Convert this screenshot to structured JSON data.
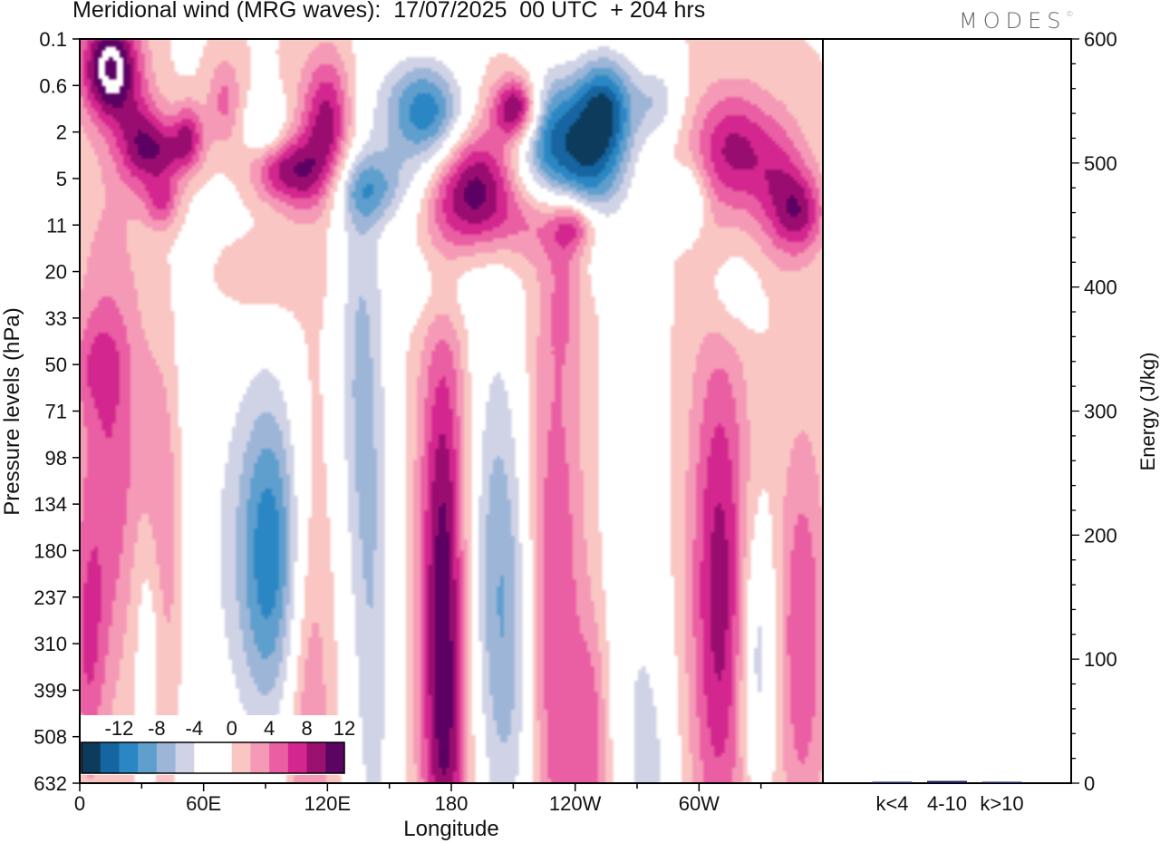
{
  "header": {
    "title": "Meridional wind (MRG waves):  17/07/2025  00 UTC  + 204 hrs",
    "brand": "MODES",
    "brand_mark": "©"
  },
  "chart_data": [
    {
      "type": "heatmap",
      "xlabel": "Longitude",
      "ylabel": "Pressure levels (hPa)",
      "x_ticks": [
        "0",
        "60E",
        "120E",
        "180",
        "120W",
        "60W"
      ],
      "x_tick_degrees": [
        0,
        60,
        120,
        180,
        240,
        300
      ],
      "xlim": [
        0,
        360
      ],
      "y_ticks": [
        "0.1",
        "0.6",
        "2",
        "5",
        "11",
        "20",
        "33",
        "50",
        "71",
        "98",
        "134",
        "180",
        "237",
        "310",
        "399",
        "508",
        "632"
      ],
      "colorbar": {
        "labels": [
          "-12",
          "-8",
          "-4",
          "0",
          "4",
          "8",
          "12"
        ],
        "levels": [
          -14,
          -12,
          -10,
          -8,
          -6,
          -4,
          -2,
          0,
          2,
          4,
          6,
          8,
          10,
          12,
          14
        ],
        "colors": [
          "#0d3b5c",
          "#1565a0",
          "#2a87c4",
          "#5e9fcd",
          "#9db6d8",
          "#d0d3e6",
          "#ffffff",
          "#ffffff",
          "#f9c6c3",
          "#f59ab6",
          "#ea5ea3",
          "#d4268f",
          "#9a1170",
          "#5b0563"
        ]
      },
      "blobs": [
        {
          "lon": 15,
          "lev": 0.3,
          "dlon": 10,
          "dlev": 0.8,
          "val": 14
        },
        {
          "lon": 30,
          "lev": 2.5,
          "dlon": 9,
          "dlev": 0.7,
          "val": 8
        },
        {
          "lon": 45,
          "lev": 3.0,
          "dlon": 10,
          "dlev": 0.5,
          "val": 6
        },
        {
          "lon": 40,
          "lev": 7.5,
          "dlon": 6,
          "dlev": 0.4,
          "val": 6
        },
        {
          "lon": 53,
          "lev": 2.0,
          "dlon": 5,
          "dlev": 0.5,
          "val": 6
        },
        {
          "lon": 70,
          "lev": 0.9,
          "dlon": 6,
          "dlev": 0.7,
          "val": 5
        },
        {
          "lon": 90,
          "lev": 2.0,
          "dlon": 7,
          "dlev": 0.5,
          "val": -5
        },
        {
          "lon": 95,
          "lev": 4.0,
          "dlon": 10,
          "dlev": 0.5,
          "val": 7
        },
        {
          "lon": 120,
          "lev": 1.5,
          "dlon": 9,
          "dlev": 1.0,
          "val": 9
        },
        {
          "lon": 110,
          "lev": 5.0,
          "dlon": 10,
          "dlev": 0.6,
          "val": 6
        },
        {
          "lon": 140,
          "lev": 6.0,
          "dlon": 14,
          "dlev": 0.55,
          "val": -7
        },
        {
          "lon": 160,
          "lev": 1.2,
          "dlon": 12,
          "dlev": 0.9,
          "val": -8
        },
        {
          "lon": 175,
          "lev": 1.3,
          "dlon": 10,
          "dlev": 0.8,
          "val": -7
        },
        {
          "lon": 192,
          "lev": 6.0,
          "dlon": 14,
          "dlev": 0.9,
          "val": 11
        },
        {
          "lon": 212,
          "lev": 1.1,
          "dlon": 8,
          "dlev": 0.5,
          "val": 13
        },
        {
          "lon": 225,
          "lev": 2.0,
          "dlon": 11,
          "dlev": 1.0,
          "val": -9
        },
        {
          "lon": 245,
          "lev": 4.0,
          "dlon": 14,
          "dlev": 1.2,
          "val": -12
        },
        {
          "lon": 255,
          "lev": 1.0,
          "dlon": 10,
          "dlev": 0.8,
          "val": -10
        },
        {
          "lon": 280,
          "lev": 0.9,
          "dlon": 8,
          "dlev": 0.6,
          "val": -5
        },
        {
          "lon": 317,
          "lev": 2.8,
          "dlon": 14,
          "dlev": 0.9,
          "val": 8
        },
        {
          "lon": 340,
          "lev": 6.5,
          "dlon": 10,
          "dlev": 1.0,
          "val": 6
        },
        {
          "lon": 350,
          "lev": 9.0,
          "dlon": 8,
          "dlev": 0.6,
          "val": 6
        },
        {
          "lon": 295,
          "lev": 7.0,
          "dlon": 6,
          "dlev": 0.5,
          "val": -5
        },
        {
          "lon": 230,
          "lev": 10.5,
          "dlon": 20,
          "dlev": 0.6,
          "val": 5
        },
        {
          "lon": 240,
          "lev": 11.0,
          "dlon": 7,
          "dlev": 0.4,
          "val": 6
        },
        {
          "lon": 85,
          "lev": 21.0,
          "dlon": 18,
          "dlev": 0.6,
          "val": 3
        },
        {
          "lon": 175,
          "lev": 23.0,
          "dlon": 15,
          "dlev": 0.7,
          "val": -3
        },
        {
          "lon": 235,
          "lev": 22.0,
          "dlon": 7,
          "dlev": 1.2,
          "val": 3
        },
        {
          "lon": 315,
          "lev": 25.0,
          "dlon": 10,
          "dlev": 0.8,
          "val": -3
        },
        {
          "lon": 135,
          "lev": 45.0,
          "dlon": 8,
          "dlev": 3.5,
          "val": -5
        },
        {
          "lon": 8,
          "lev": 50.0,
          "dlon": 9,
          "dlev": 0.7,
          "val": 3
        },
        {
          "lon": 15,
          "lev": 92.0,
          "dlon": 12,
          "dlev": 3.5,
          "val": 6
        },
        {
          "lon": 40,
          "lev": 190.0,
          "dlon": 7,
          "dlev": 3.0,
          "val": 7
        },
        {
          "lon": 60,
          "lev": 160.0,
          "dlon": 20,
          "dlev": 5.0,
          "val": -3
        },
        {
          "lon": 93,
          "lev": 185.0,
          "dlon": 12,
          "dlev": 2.6,
          "val": -11
        },
        {
          "lon": 35,
          "lev": 265.0,
          "dlon": 6,
          "dlev": 2.0,
          "val": -5
        },
        {
          "lon": 4,
          "lev": 320.0,
          "dlon": 6,
          "dlev": 1.8,
          "val": 5
        },
        {
          "lon": 110,
          "lev": 380.0,
          "dlon": 8,
          "dlev": 4.0,
          "val": 5
        },
        {
          "lon": 142,
          "lev": 310.0,
          "dlon": 8,
          "dlev": 5.0,
          "val": -5
        },
        {
          "lon": 176,
          "lev": 210.0,
          "dlon": 8,
          "dlev": 4.0,
          "val": 11
        },
        {
          "lon": 202,
          "lev": 205.0,
          "dlon": 10,
          "dlev": 4.0,
          "val": -7
        },
        {
          "lon": 230,
          "lev": 260.0,
          "dlon": 10,
          "dlev": 5.0,
          "val": 6
        },
        {
          "lon": 212,
          "lev": 380.0,
          "dlon": 8,
          "dlev": 3.0,
          "val": -3
        },
        {
          "lon": 268,
          "lev": 300.0,
          "dlon": 10,
          "dlev": 5.0,
          "val": -3
        },
        {
          "lon": 310,
          "lev": 230.0,
          "dlon": 10,
          "dlev": 4.0,
          "val": 9
        },
        {
          "lon": 328,
          "lev": 330.0,
          "dlon": 6,
          "dlev": 2.0,
          "val": -6
        },
        {
          "lon": 350,
          "lev": 300.0,
          "dlon": 8,
          "dlev": 3.0,
          "val": 6
        },
        {
          "lon": 248,
          "lev": 540.0,
          "dlon": 6,
          "dlev": 2.0,
          "val": 5
        },
        {
          "lon": 278,
          "lev": 590.0,
          "dlon": 8,
          "dlev": 2.0,
          "val": -3
        },
        {
          "lon": 178,
          "lev": 600.0,
          "dlon": 8,
          "dlev": 2.0,
          "val": 4
        }
      ]
    },
    {
      "type": "bar",
      "ylabel": "Energy (J/kg)",
      "ylim": [
        0,
        600
      ],
      "y_ticks": [
        "0",
        "100",
        "200",
        "300",
        "400",
        "500",
        "600"
      ],
      "categories": [
        "k<4",
        "4-10",
        "k>10"
      ],
      "values": [
        0.6,
        1.8,
        0.2
      ],
      "bar_color": "#1a1a5a"
    }
  ]
}
